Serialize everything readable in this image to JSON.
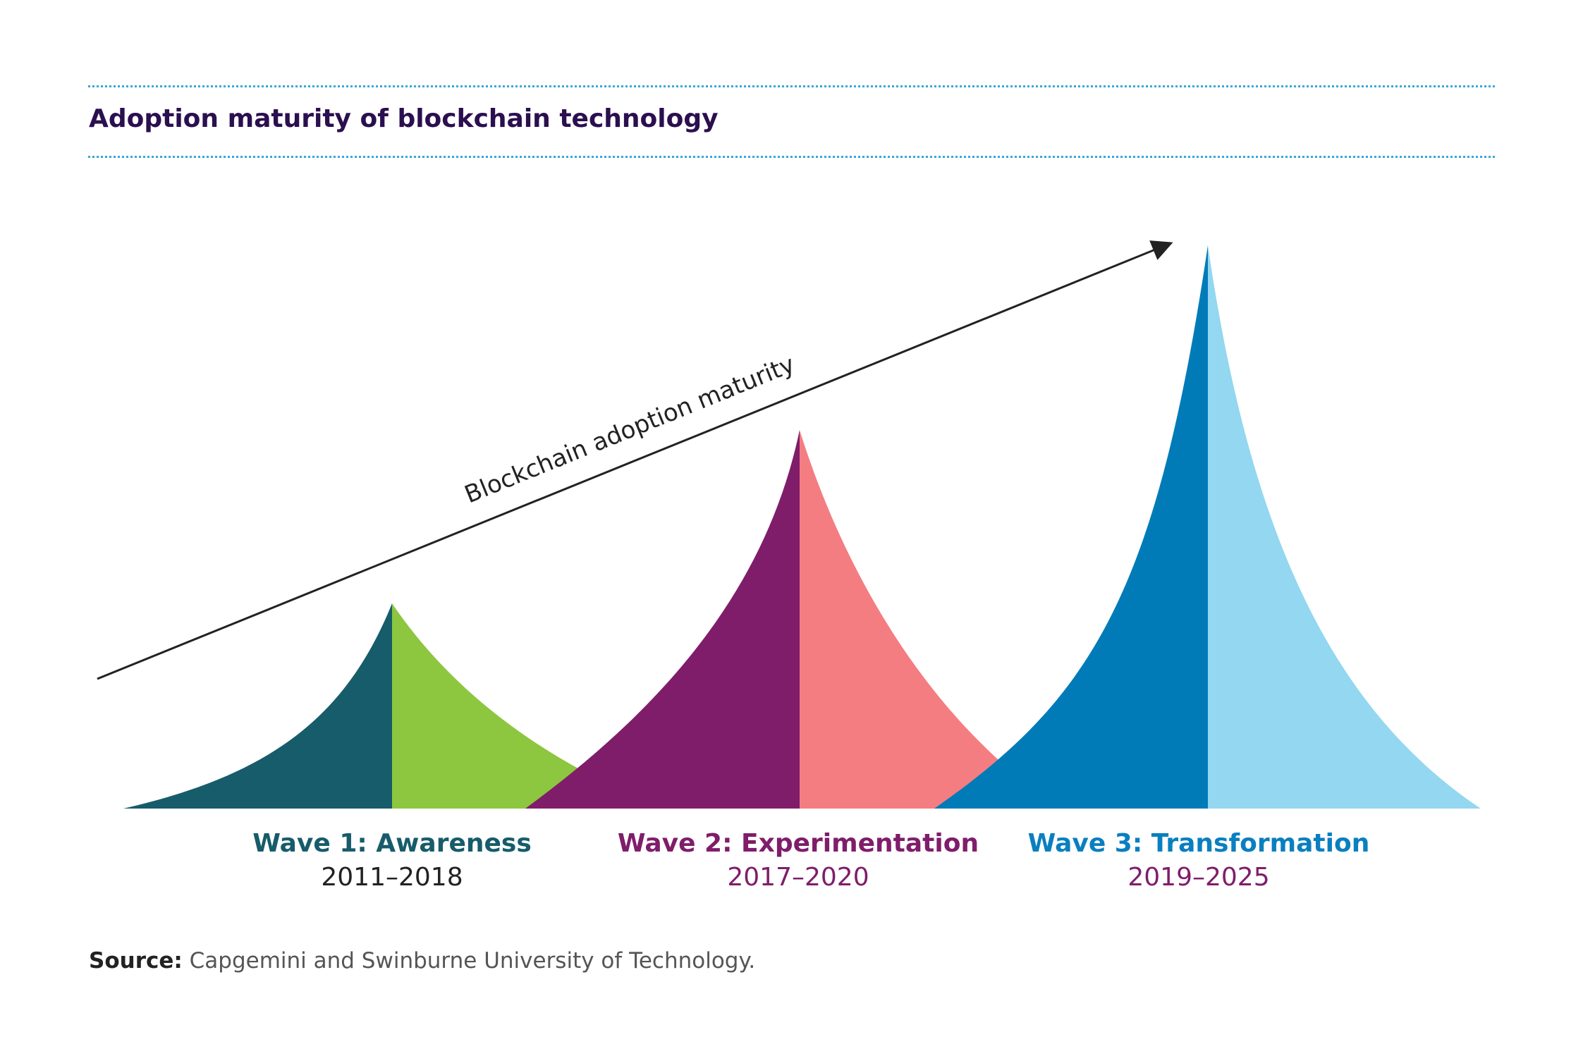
{
  "title": "Adoption maturity of blockchain technology",
  "arrow_label": "Blockchain adoption maturity",
  "colors": {
    "rule": "#3aa6d8",
    "title": "#2b0f4f",
    "wave1_left": "#165c6a",
    "wave1_right": "#8dc63f",
    "wave2_left": "#7f1d6b",
    "wave2_right": "#f47d82",
    "wave3_left": "#007bb8",
    "wave3_right": "#93d7f0",
    "wave1_name": "#165c6a",
    "wave2_name": "#7f1d6b",
    "wave3_name": "#0a7fc0",
    "years_default": "#222222",
    "years_accent": "#7f1d6b"
  },
  "waves": [
    {
      "name": "Wave 1: Awareness",
      "years": "2011–2018"
    },
    {
      "name": "Wave 2: Experimentation",
      "years": "2017–2020"
    },
    {
      "name": "Wave 3: Transformation",
      "years": "2019–2025"
    }
  ],
  "source": {
    "label": "Source:",
    "text": " Capgemini and Swinburne University of Technology."
  }
}
